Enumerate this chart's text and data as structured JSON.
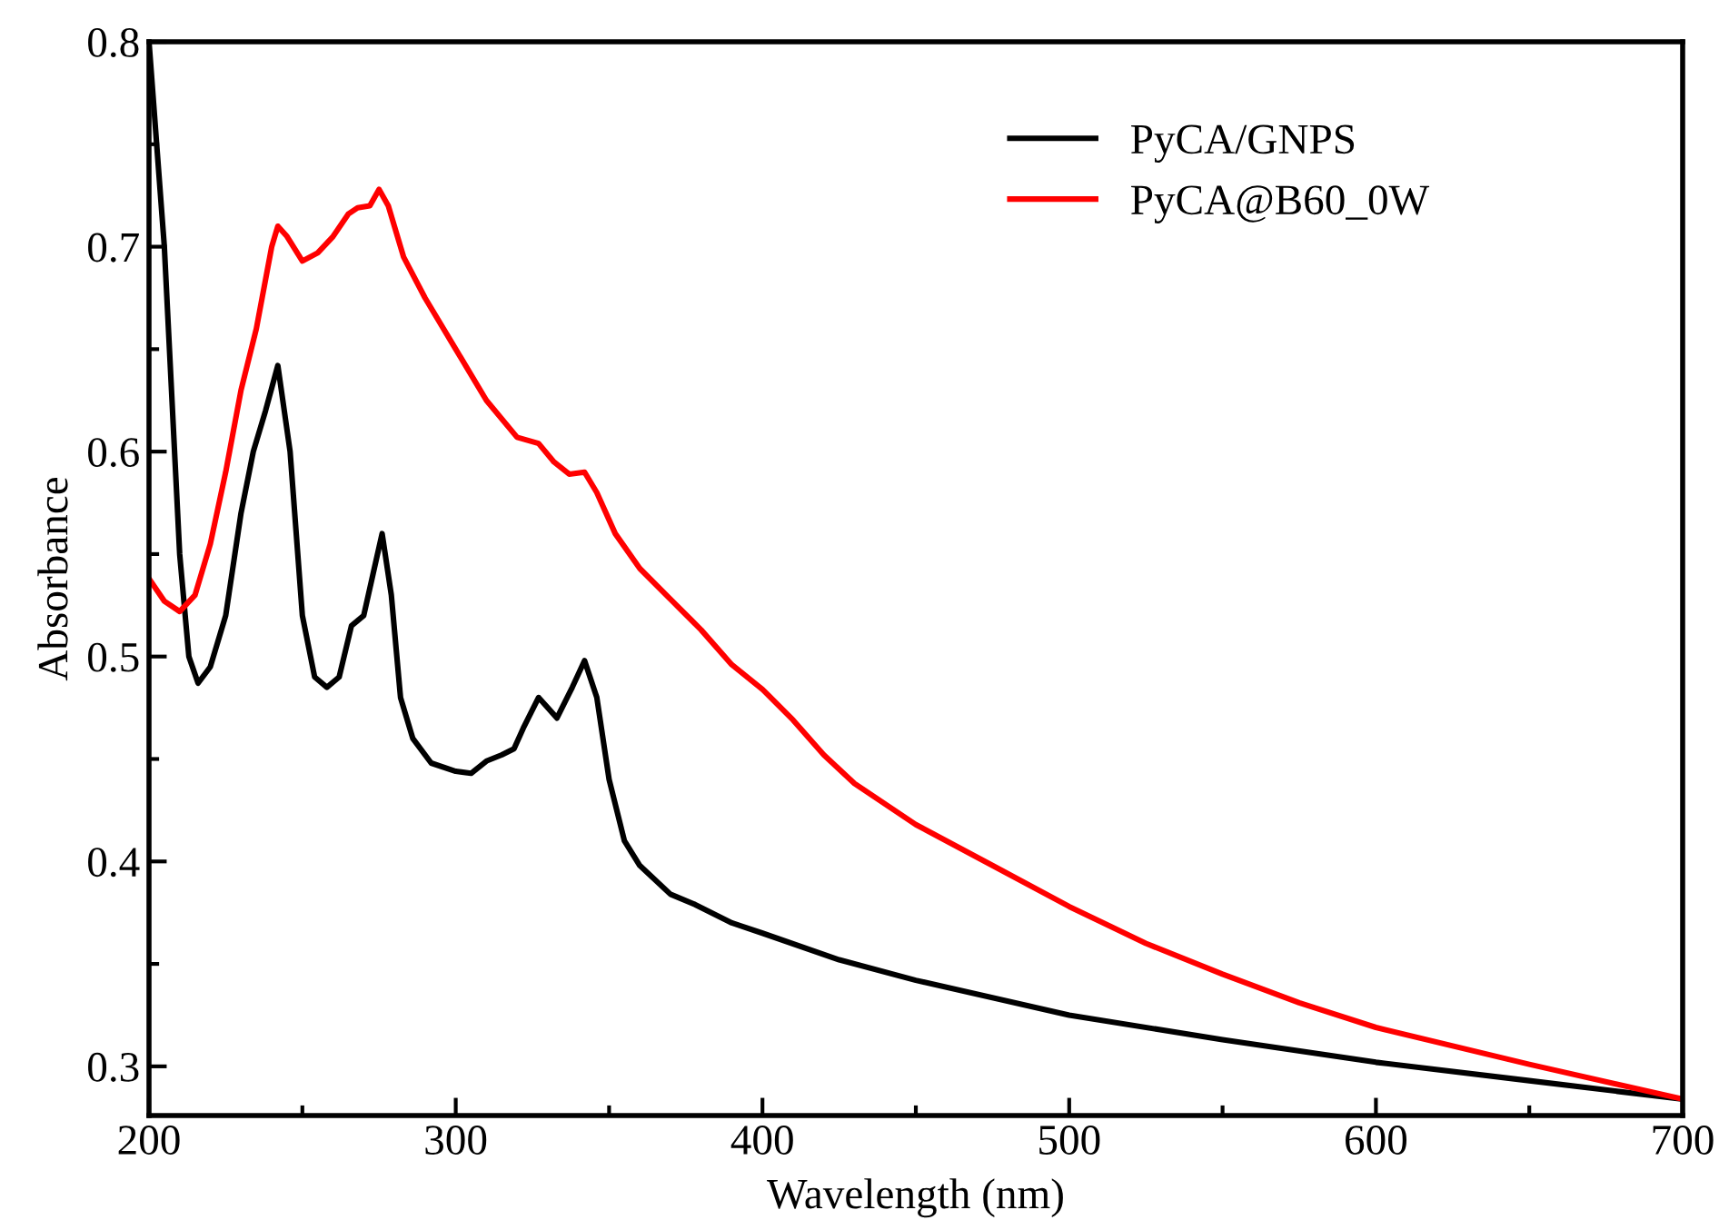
{
  "chart_data": {
    "type": "line",
    "xlabel": "Wavelength (nm)",
    "ylabel": "Absorbance",
    "xlim": [
      200,
      700
    ],
    "ylim": [
      0.276,
      0.8
    ],
    "xticks": [
      200,
      300,
      400,
      500,
      600,
      700
    ],
    "yticks": [
      0.3,
      0.4,
      0.5,
      0.6,
      0.7,
      0.8
    ],
    "grid": false,
    "legend": "top right",
    "marker": "none",
    "line_style": "solid",
    "series": [
      {
        "name": "PyCA/GNPS",
        "color": "#000000",
        "x": [
          200,
          205,
          210,
          213,
          216,
          220,
          225,
          230,
          234,
          238,
          242,
          246,
          250,
          254,
          258,
          262,
          266,
          270,
          273,
          276,
          279,
          282,
          286,
          292,
          300,
          305,
          310,
          315,
          319,
          322,
          327,
          333,
          338,
          342,
          346,
          350,
          355,
          360,
          370,
          378,
          390,
          400,
          425,
          450,
          500,
          550,
          600,
          650,
          700
        ],
        "values": [
          0.8,
          0.7,
          0.55,
          0.5,
          0.487,
          0.495,
          0.52,
          0.57,
          0.6,
          0.62,
          0.642,
          0.6,
          0.52,
          0.49,
          0.485,
          0.49,
          0.515,
          0.52,
          0.54,
          0.56,
          0.53,
          0.48,
          0.46,
          0.448,
          0.444,
          0.443,
          0.449,
          0.452,
          0.455,
          0.465,
          0.48,
          0.47,
          0.485,
          0.498,
          0.48,
          0.44,
          0.41,
          0.398,
          0.384,
          0.379,
          0.37,
          0.365,
          0.352,
          0.342,
          0.325,
          0.313,
          0.302,
          0.293,
          0.284
        ]
      },
      {
        "name": "PyCA@B60_0W",
        "color": "#ff0000",
        "x": [
          200,
          205,
          210,
          215,
          220,
          225,
          230,
          235,
          240,
          242,
          245,
          250,
          255,
          260,
          265,
          268,
          272,
          275,
          278,
          283,
          290,
          300,
          310,
          320,
          327,
          332,
          337,
          342,
          346,
          352,
          360,
          370,
          380,
          390,
          400,
          410,
          420,
          430,
          450,
          475,
          500,
          525,
          550,
          575,
          600,
          650,
          700
        ],
        "values": [
          0.538,
          0.527,
          0.522,
          0.53,
          0.555,
          0.59,
          0.63,
          0.66,
          0.7,
          0.71,
          0.705,
          0.693,
          0.697,
          0.705,
          0.716,
          0.719,
          0.72,
          0.728,
          0.72,
          0.695,
          0.675,
          0.65,
          0.625,
          0.607,
          0.604,
          0.595,
          0.589,
          0.59,
          0.58,
          0.56,
          0.543,
          0.528,
          0.513,
          0.496,
          0.484,
          0.469,
          0.452,
          0.438,
          0.418,
          0.398,
          0.378,
          0.36,
          0.345,
          0.331,
          0.319,
          0.301,
          0.284
        ]
      }
    ]
  }
}
